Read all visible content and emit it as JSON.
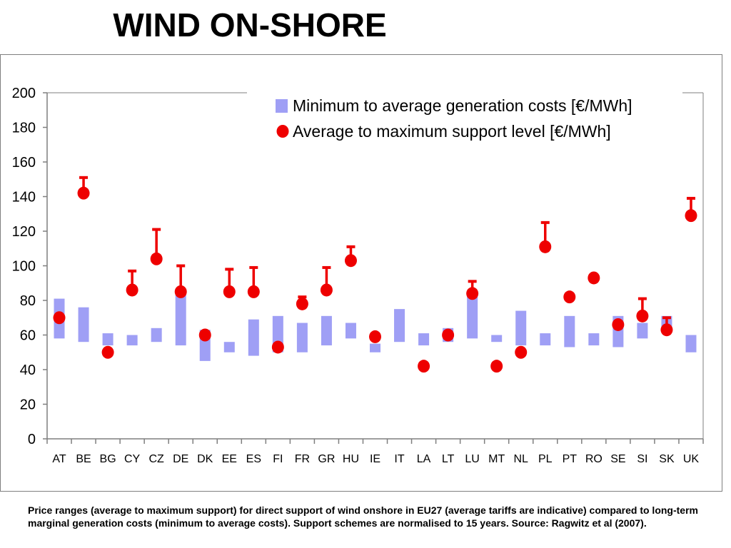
{
  "page": {
    "title": "WIND ON-SHORE",
    "caption": "Price ranges (average to maximum support) for direct support of wind onshore in EU27 (average tariffs are indicative) compared to long-term marginal generation costs (minimum to average costs). Support schemes are normalised to 15 years. Source: Ragwitz et al (2007)."
  },
  "colors": {
    "cost_bar": "#9f9ff5",
    "support": "#ee0000",
    "axis": "#7f7f7f"
  },
  "chart_data": {
    "type": "bar",
    "title": "",
    "xlabel": "",
    "ylabel": "",
    "ylim": [
      0,
      200
    ],
    "yticks": [
      "0",
      "20",
      "40",
      "60",
      "80",
      "100",
      "120",
      "140",
      "160",
      "180",
      "200"
    ],
    "grid": false,
    "legend_placement": "top-right",
    "categories": [
      "AT",
      "BE",
      "BG",
      "CY",
      "CZ",
      "DE",
      "DK",
      "EE",
      "ES",
      "FI",
      "FR",
      "GR",
      "HU",
      "IE",
      "IT",
      "LA",
      "LT",
      "LU",
      "MT",
      "NL",
      "PL",
      "PT",
      "RO",
      "SE",
      "SI",
      "SK",
      "UK"
    ],
    "series": [
      {
        "name": "Minimum to average generation costs [€/MWh]",
        "kind": "range-bar",
        "low": [
          58,
          56,
          54,
          54,
          56,
          54,
          45,
          50,
          48,
          50,
          50,
          54,
          58,
          50,
          56,
          54,
          56,
          58,
          56,
          54,
          54,
          53,
          54,
          53,
          58,
          63,
          50
        ],
        "high": [
          81,
          76,
          61,
          60,
          64,
          86,
          63,
          56,
          69,
          71,
          67,
          71,
          67,
          55,
          75,
          61,
          64,
          84,
          60,
          74,
          61,
          71,
          61,
          71,
          67,
          71,
          60
        ]
      },
      {
        "name": "Average to maximum support level [€/MWh]",
        "kind": "point-with-max",
        "avg": [
          70,
          142,
          50,
          86,
          104,
          85,
          60,
          85,
          85,
          53,
          78,
          86,
          103,
          59,
          null,
          42,
          60,
          84,
          42,
          50,
          111,
          82,
          93,
          66,
          71,
          63,
          129
        ],
        "max": [
          null,
          151,
          null,
          97,
          121,
          100,
          null,
          98,
          99,
          null,
          82,
          99,
          111,
          null,
          null,
          null,
          null,
          91,
          null,
          null,
          125,
          null,
          null,
          null,
          81,
          70,
          139
        ]
      }
    ]
  }
}
